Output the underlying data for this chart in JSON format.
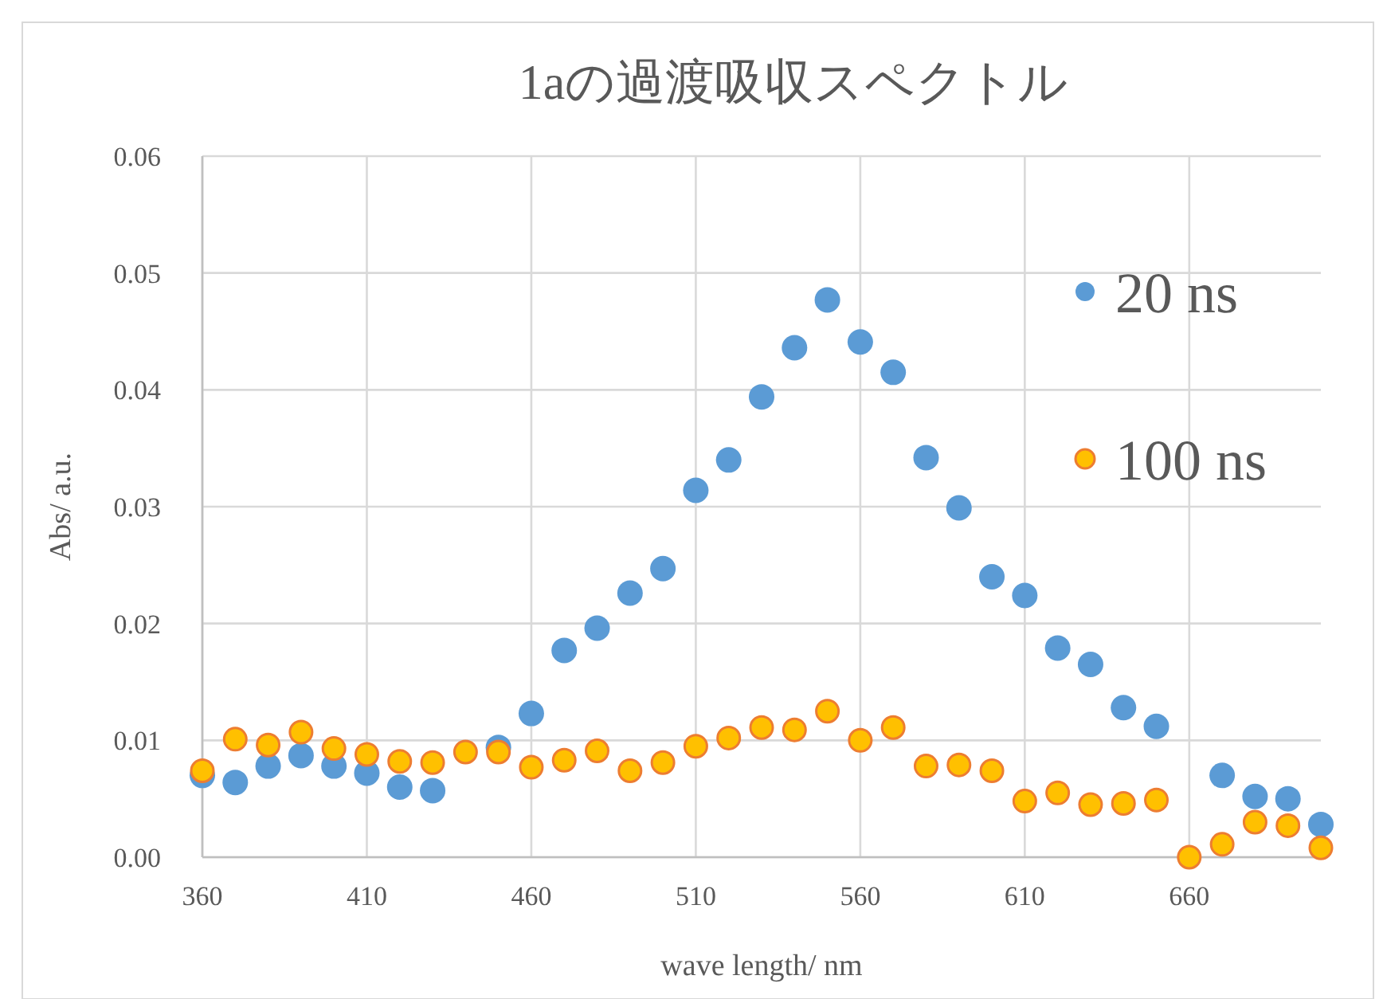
{
  "chart_data": {
    "type": "scatter",
    "title": "1aの過渡吸収スペクトル",
    "xlabel": "wave length/ nm",
    "ylabel": "Abs/ a.u.",
    "x": [
      360,
      370,
      380,
      390,
      400,
      410,
      420,
      430,
      440,
      450,
      460,
      470,
      480,
      490,
      500,
      510,
      520,
      530,
      540,
      550,
      560,
      570,
      580,
      590,
      600,
      610,
      620,
      630,
      640,
      650,
      660,
      670,
      680,
      690,
      700
    ],
    "series": [
      {
        "name": "20 ns",
        "color": "#5b9bd5",
        "values": [
          0.007,
          0.0064,
          0.0078,
          0.0087,
          0.0078,
          0.0072,
          0.006,
          0.0057,
          null,
          0.0094,
          0.0123,
          0.0177,
          0.0196,
          0.0226,
          0.0247,
          0.0314,
          0.034,
          0.0394,
          0.0436,
          0.0477,
          0.0441,
          0.0415,
          0.0342,
          0.0299,
          0.024,
          0.0224,
          0.0179,
          0.0165,
          0.0128,
          0.0112,
          null,
          0.007,
          0.0052,
          0.005,
          0.0028
        ]
      },
      {
        "name": "100 ns",
        "color": "#ffc000",
        "values": [
          0.0074,
          0.0101,
          0.0096,
          0.0107,
          0.0093,
          0.0088,
          0.0082,
          0.0081,
          0.009,
          0.009,
          0.0077,
          0.0083,
          0.0091,
          0.0074,
          0.0081,
          0.0095,
          0.0102,
          0.0111,
          0.0109,
          0.0125,
          0.01,
          0.0111,
          0.0078,
          0.0079,
          0.0074,
          0.0048,
          0.0055,
          0.0045,
          0.0046,
          0.0049,
          0.0,
          0.0011,
          0.003,
          0.0027,
          0.0008
        ]
      }
    ],
    "xlim": [
      360,
      700
    ],
    "xticks": [
      360,
      410,
      460,
      510,
      560,
      610,
      660
    ],
    "ylim": [
      0,
      0.06
    ],
    "yticks": [
      {
        "value": 0,
        "label": "0.00"
      },
      {
        "value": 0.01,
        "label": "0.01"
      },
      {
        "value": 0.02,
        "label": "0.02"
      },
      {
        "value": 0.03,
        "label": "0.03"
      },
      {
        "value": 0.04,
        "label": "0.04"
      },
      {
        "value": 0.05,
        "label": "0.05"
      },
      {
        "value": 0.06,
        "label": "0.06"
      }
    ],
    "grid": true,
    "legend": "right",
    "marker": "circle"
  }
}
